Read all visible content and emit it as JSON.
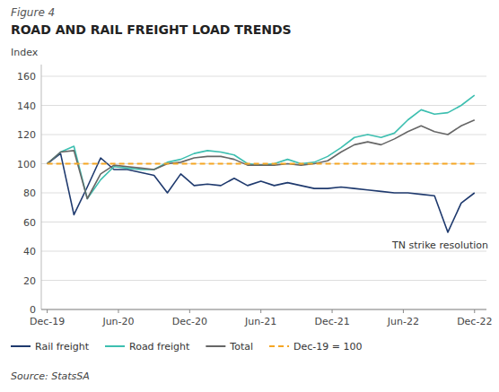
{
  "chart_data": {
    "type": "line",
    "subtitle": "Figure 4",
    "title": "ROAD AND RAIL FREIGHT LOAD TRENDS",
    "y_label": "Index",
    "source": "Source: StatsSA",
    "annotations": [
      "TN strike resolution"
    ],
    "x": [
      0,
      1.125,
      2.25,
      3.375,
      4.5,
      5.625,
      6.75,
      7.875,
      9,
      10.125,
      11.25,
      12.375,
      13.5,
      14.625,
      15.75,
      16.875,
      18,
      19.125,
      20.25,
      21.375,
      22.5,
      23.625,
      24.75,
      25.875,
      27,
      28.125,
      29.25,
      30.375,
      31.5,
      32.625,
      33.75,
      34.875,
      36
    ],
    "xlim": [
      -0.5,
      37
    ],
    "xticks": [
      {
        "value": 0,
        "label": "Dec-19"
      },
      {
        "value": 6,
        "label": "Jun-20"
      },
      {
        "value": 12,
        "label": "Dec-20"
      },
      {
        "value": 18,
        "label": "Jun-21"
      },
      {
        "value": 24,
        "label": "Dec-21"
      },
      {
        "value": 30,
        "label": "Jun-22"
      },
      {
        "value": 36,
        "label": "Dec-22"
      }
    ],
    "ylim": [
      0,
      168
    ],
    "yticks": [
      0,
      20,
      40,
      60,
      80,
      100,
      120,
      140,
      160
    ],
    "grid": true,
    "legend": "bottom",
    "series": [
      {
        "name": "Rail freight",
        "color": "#1F3A6E",
        "line_style": "solid",
        "values": [
          100,
          107,
          65,
          84,
          104,
          96,
          96,
          94,
          92,
          80,
          93,
          85,
          86,
          85,
          90,
          85,
          88,
          85,
          87,
          85,
          83,
          83,
          84,
          83,
          82,
          81,
          80,
          80,
          79,
          78,
          53,
          73,
          80
        ]
      },
      {
        "name": "Road freight",
        "color": "#3DBFB0",
        "line_style": "solid",
        "values": [
          100,
          108,
          112,
          76,
          89,
          98,
          97,
          96,
          96,
          101,
          103,
          107,
          109,
          108,
          106,
          100,
          99,
          100,
          103,
          100,
          101,
          105,
          111,
          118,
          120,
          118,
          121,
          130,
          137,
          134,
          135,
          140,
          147
        ]
      },
      {
        "name": "Total",
        "color": "#666666",
        "line_style": "solid",
        "values": [
          100,
          108,
          109,
          76,
          93,
          99,
          98,
          97,
          96,
          100,
          101,
          104,
          105,
          105,
          103,
          99,
          99,
          99,
          100,
          99,
          100,
          102,
          108,
          113,
          115,
          113,
          117,
          122,
          126,
          122,
          120,
          126,
          130
        ]
      },
      {
        "name": "Dec-19 = 100",
        "color": "#F5A623",
        "line_style": "dashed",
        "values": [
          100,
          100,
          100,
          100,
          100,
          100,
          100,
          100,
          100,
          100,
          100,
          100,
          100,
          100,
          100,
          100,
          100,
          100,
          100,
          100,
          100,
          100,
          100,
          100,
          100,
          100,
          100,
          100,
          100,
          100,
          100,
          100,
          100
        ]
      }
    ]
  }
}
